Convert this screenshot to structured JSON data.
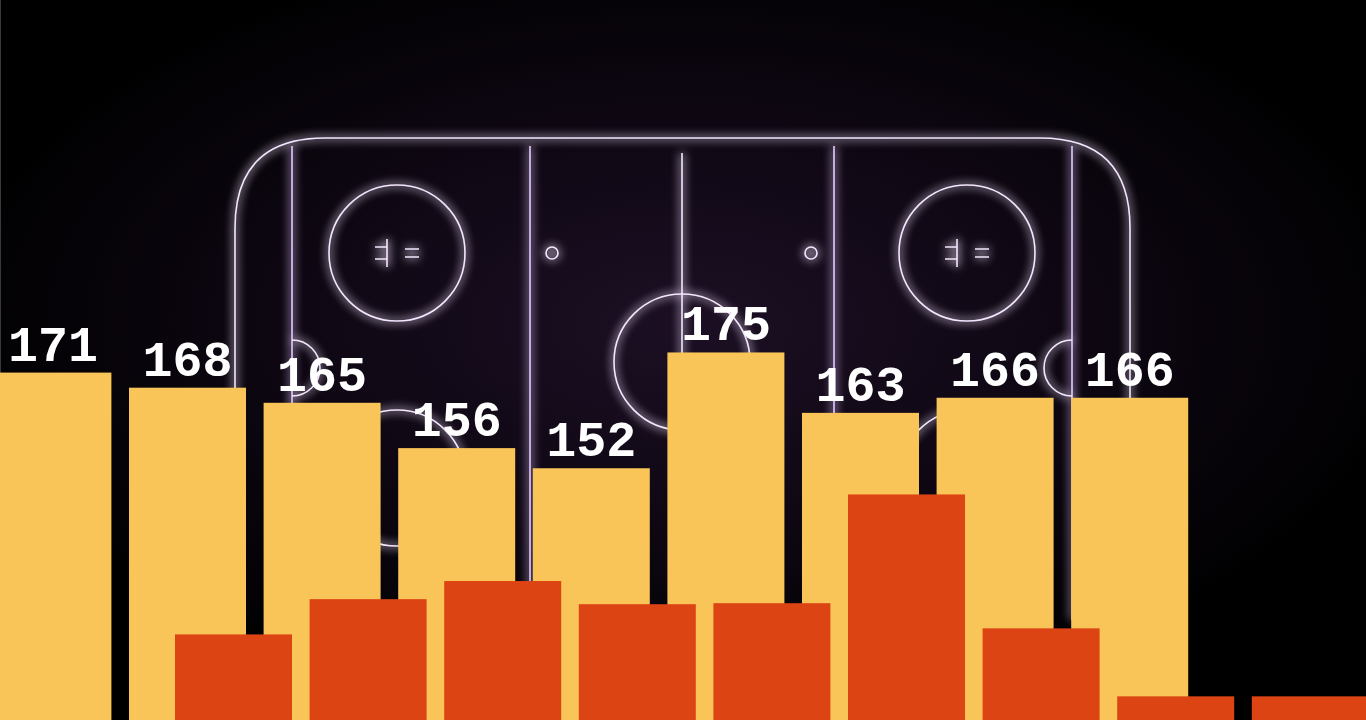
{
  "chart_data": {
    "type": "bar",
    "categories": [
      null,
      null,
      null,
      null,
      null,
      null,
      null,
      null,
      null
    ],
    "series": [
      {
        "color": "#fac558",
        "data_labels": true,
        "values": [
          171,
          168,
          165,
          156,
          152,
          175,
          163,
          166,
          166
        ]
      },
      {
        "color": "#dd4414",
        "values": [
          119,
          126,
          129.6,
          125,
          125.2,
          146.8,
          120.2,
          106.7,
          106.7
        ]
      }
    ],
    "ylim": [
      102,
      245
    ],
    "yticks": [],
    "grid": false,
    "tick_labels": false
  }
}
